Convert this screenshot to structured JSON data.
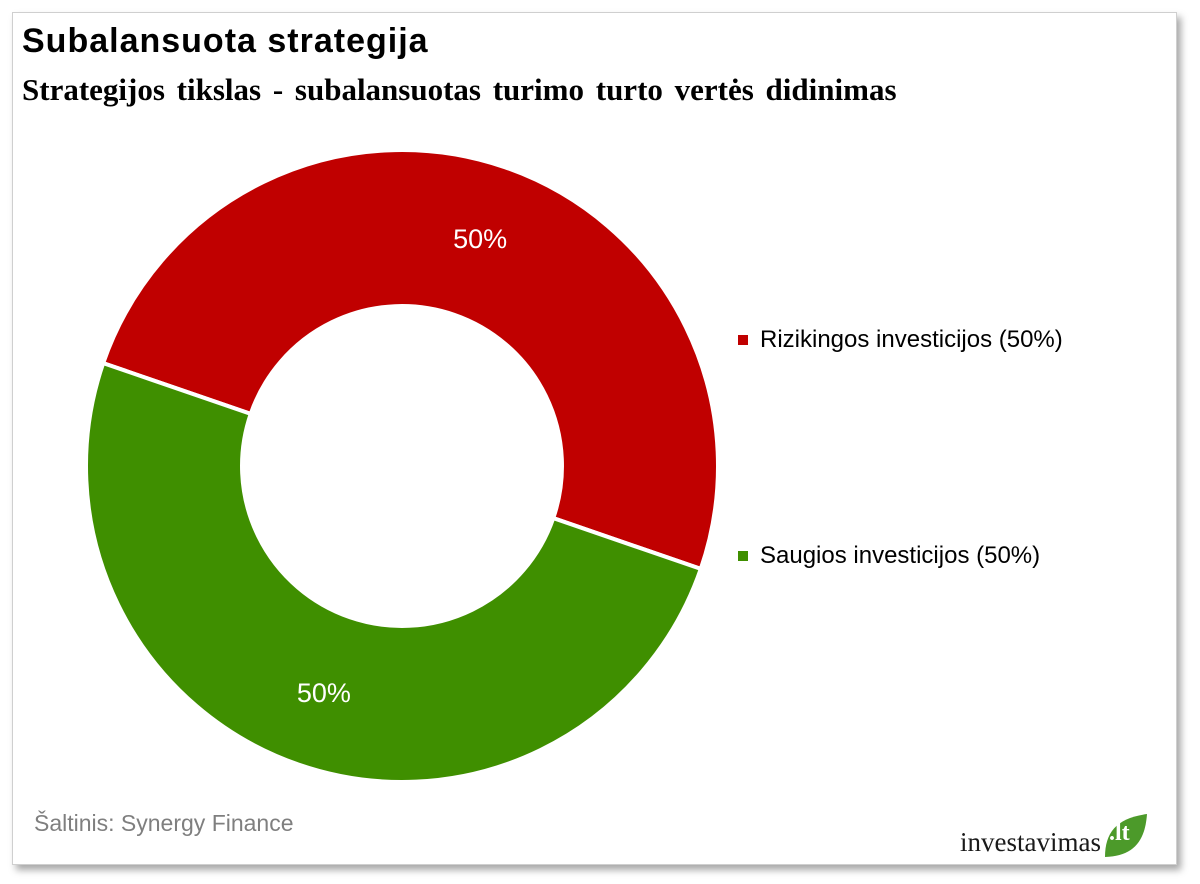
{
  "header": {
    "title": "Subalansuota strategija",
    "subtitle": "Strategijos tikslas - subalansuotas turimo turto vertės didinimas"
  },
  "chart_data": {
    "type": "pie",
    "variant": "donut",
    "title": "Subalansuota strategija",
    "subtitle": "Strategijos tikslas - subalansuotas turimo turto vertės didinimas",
    "slices": [
      {
        "label": "Rizikingos investicijos (50%)",
        "value": 50,
        "data_label": "50%",
        "color": "#c00000"
      },
      {
        "label": "Saugios investicijos (50%)",
        "value": 50,
        "data_label": "50%",
        "color": "#3f8f00"
      }
    ],
    "legend_position": "right"
  },
  "footer": {
    "source": "Šaltinis: Synergy Finance",
    "logo_text": "investavimas",
    "logo_tld": ".lt",
    "logo_color": "#4c9a2a"
  }
}
